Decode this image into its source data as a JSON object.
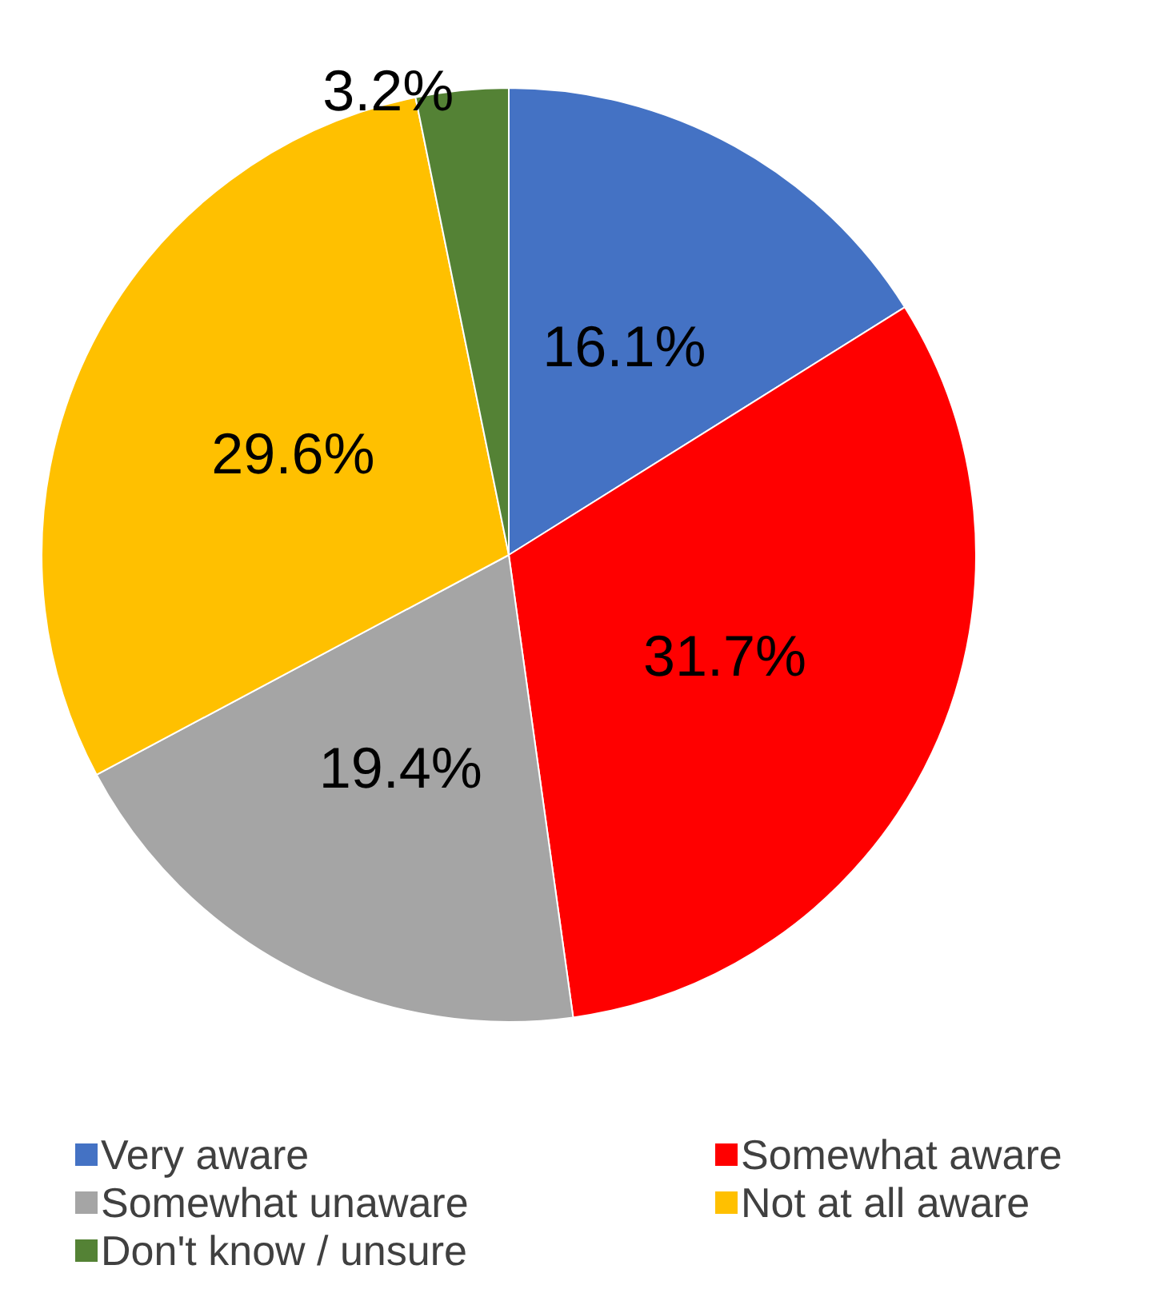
{
  "chart_data": {
    "type": "pie",
    "categories": [
      "Very aware",
      "Somewhat aware",
      "Somewhat unaware",
      "Not at all aware",
      "Don't know / unsure"
    ],
    "values": [
      16.1,
      31.7,
      19.4,
      29.6,
      3.2
    ],
    "value_labels": [
      "16.1%",
      "31.7%",
      "19.4%",
      "29.6%",
      "3.2%"
    ],
    "colors": [
      "#4472c4",
      "#ff0000",
      "#a5a5a5",
      "#ffc000",
      "#548235"
    ],
    "legend": "bottom"
  }
}
